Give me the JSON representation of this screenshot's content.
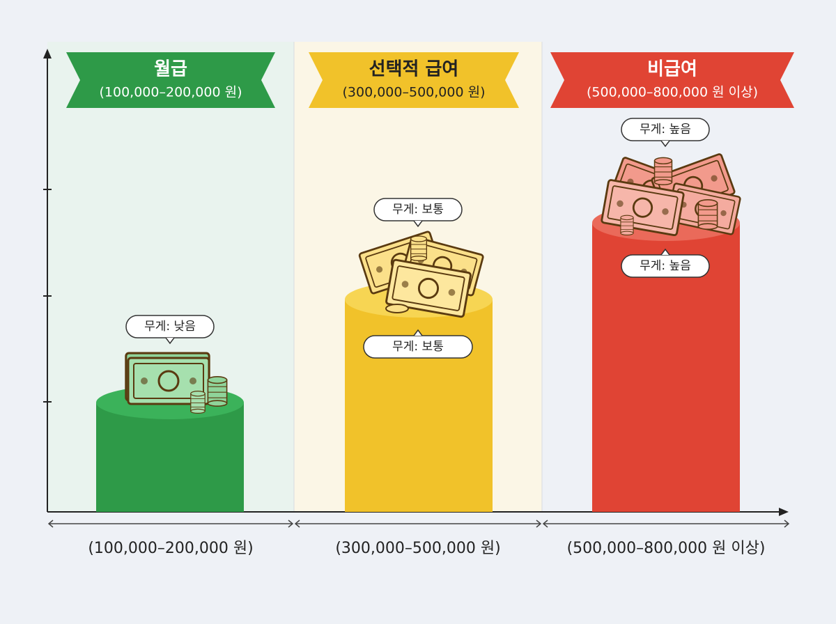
{
  "panels": [
    {
      "banner": {
        "title": "월급",
        "range": "(100,000–200,000 원)"
      },
      "weight_labels": [
        "무게: 낮음"
      ],
      "axis_label": "(100,000–200,000 원)"
    },
    {
      "banner": {
        "title": "선택적 급여",
        "range": "(300,000–500,000 원)"
      },
      "weight_labels": [
        "무게: 보통",
        "무게: 보통"
      ],
      "axis_label": "(300,000–500,000 원)"
    },
    {
      "banner": {
        "title": "비급여",
        "range": "(500,000–800,000 원 이상)"
      },
      "weight_labels": [
        "무게: 높음",
        "무게: 높음"
      ],
      "axis_label": "(500,000–800,000 원 이상)"
    }
  ]
}
